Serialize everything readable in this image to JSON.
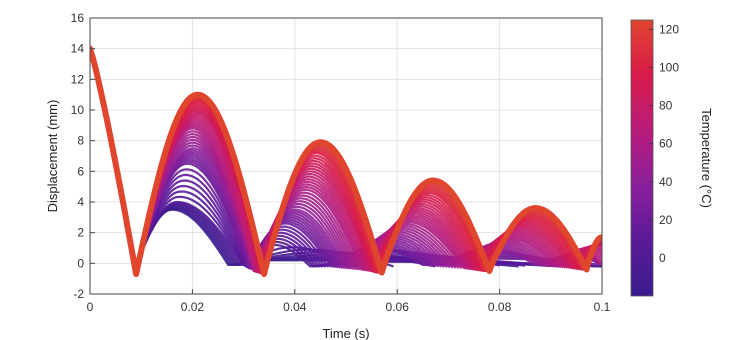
{
  "chart_data": {
    "type": "line",
    "title": "",
    "xlabel": "Time (s)",
    "ylabel": "Displacement (mm)",
    "xlim": [
      0,
      0.1
    ],
    "ylim": [
      -2,
      16
    ],
    "xticks": [
      0,
      0.02,
      0.04,
      0.06,
      0.08,
      0.1
    ],
    "xtick_labels": [
      "0",
      "0.02",
      "0.04",
      "0.06",
      "0.08",
      "0.1"
    ],
    "yticks": [
      -2,
      0,
      2,
      4,
      6,
      8,
      10,
      12,
      14,
      16
    ],
    "ytick_labels": [
      "-2",
      "0",
      "2",
      "4",
      "6",
      "8",
      "10",
      "12",
      "14",
      "16"
    ],
    "grid": true,
    "colorbar": {
      "label": "Temperature (°C)",
      "range": [
        -20,
        125
      ],
      "ticks": [
        0,
        20,
        40,
        60,
        80,
        100,
        120
      ],
      "tick_labels": [
        "0",
        "20",
        "40",
        "60",
        "80",
        "100",
        "120"
      ],
      "colormap": [
        "#3a1c8e",
        "#5a1a9a",
        "#8a1f9a",
        "#b81c7c",
        "#d81b4a",
        "#e0452e"
      ]
    },
    "initial_drop": {
      "x0": 0,
      "y0": 14,
      "x1": 0.009,
      "y1": -0.7
    },
    "series": [
      {
        "temperature": -20,
        "bounces": [
          {
            "x_start": 0.009,
            "x_peak": 0.016,
            "x_end": 0.027,
            "peak": 3.5,
            "min": -0.1
          },
          {
            "x_start": 0.027,
            "x_peak": 0.035,
            "x_end": 0.1,
            "peak": 0.2,
            "min": -0.2
          }
        ]
      },
      {
        "temperature": 0,
        "bounces": [
          {
            "x_start": 0.009,
            "x_peak": 0.017,
            "x_end": 0.03,
            "peak": 4.0,
            "min": -0.1
          },
          {
            "x_start": 0.03,
            "x_peak": 0.036,
            "x_end": 0.043,
            "peak": 1.2,
            "min": -0.2
          },
          {
            "x_start": 0.043,
            "x_peak": 0.06,
            "x_end": 0.1,
            "peak": 0.1,
            "min": -0.2
          }
        ]
      },
      {
        "temperature": 20,
        "bounces": [
          {
            "x_start": 0.009,
            "x_peak": 0.019,
            "x_end": 0.031,
            "peak": 6.5,
            "min": -0.3
          },
          {
            "x_start": 0.031,
            "x_peak": 0.038,
            "x_end": 0.047,
            "peak": 2.6,
            "min": -0.2
          },
          {
            "x_start": 0.047,
            "x_peak": 0.056,
            "x_end": 0.065,
            "peak": 1.0,
            "min": -0.1
          },
          {
            "x_start": 0.065,
            "x_peak": 0.08,
            "x_end": 0.1,
            "peak": 0.3,
            "min": -0.1
          }
        ]
      },
      {
        "temperature": 40,
        "bounces": [
          {
            "x_start": 0.009,
            "x_peak": 0.02,
            "x_end": 0.032,
            "peak": 7.5,
            "min": -0.4
          },
          {
            "x_start": 0.032,
            "x_peak": 0.04,
            "x_end": 0.05,
            "peak": 3.5,
            "min": -0.3
          },
          {
            "x_start": 0.05,
            "x_peak": 0.059,
            "x_end": 0.069,
            "peak": 1.8,
            "min": -0.2
          },
          {
            "x_start": 0.069,
            "x_peak": 0.078,
            "x_end": 0.087,
            "peak": 1.0,
            "min": -0.1
          },
          {
            "x_start": 0.087,
            "x_peak": 0.094,
            "x_end": 0.1,
            "peak": 0.5,
            "min": -0.1
          }
        ]
      },
      {
        "temperature": 60,
        "bounces": [
          {
            "x_start": 0.009,
            "x_peak": 0.02,
            "x_end": 0.032,
            "peak": 8.8,
            "min": -0.5
          },
          {
            "x_start": 0.032,
            "x_peak": 0.042,
            "x_end": 0.053,
            "peak": 4.8,
            "min": -0.4
          },
          {
            "x_start": 0.053,
            "x_peak": 0.062,
            "x_end": 0.073,
            "peak": 2.7,
            "min": -0.3
          },
          {
            "x_start": 0.073,
            "x_peak": 0.082,
            "x_end": 0.091,
            "peak": 1.6,
            "min": -0.2
          },
          {
            "x_start": 0.091,
            "x_peak": 0.096,
            "x_end": 0.1,
            "peak": 0.9,
            "min": -0.1
          }
        ]
      },
      {
        "temperature": 80,
        "bounces": [
          {
            "x_start": 0.009,
            "x_peak": 0.021,
            "x_end": 0.033,
            "peak": 9.7,
            "min": -0.6
          },
          {
            "x_start": 0.033,
            "x_peak": 0.043,
            "x_end": 0.055,
            "peak": 6.0,
            "min": -0.5
          },
          {
            "x_start": 0.055,
            "x_peak": 0.064,
            "x_end": 0.075,
            "peak": 3.6,
            "min": -0.4
          },
          {
            "x_start": 0.075,
            "x_peak": 0.084,
            "x_end": 0.094,
            "peak": 2.3,
            "min": -0.3
          },
          {
            "x_start": 0.094,
            "x_peak": 0.099,
            "x_end": 0.104,
            "peak": 1.2,
            "min": -0.2
          }
        ]
      },
      {
        "temperature": 100,
        "bounces": [
          {
            "x_start": 0.009,
            "x_peak": 0.021,
            "x_end": 0.034,
            "peak": 10.5,
            "min": -0.7
          },
          {
            "x_start": 0.034,
            "x_peak": 0.044,
            "x_end": 0.056,
            "peak": 7.2,
            "min": -0.6
          },
          {
            "x_start": 0.056,
            "x_peak": 0.066,
            "x_end": 0.077,
            "peak": 4.6,
            "min": -0.5
          },
          {
            "x_start": 0.077,
            "x_peak": 0.086,
            "x_end": 0.096,
            "peak": 3.0,
            "min": -0.4
          },
          {
            "x_start": 0.096,
            "x_peak": 0.1,
            "x_end": 0.104,
            "peak": 1.5,
            "min": -0.3
          }
        ]
      },
      {
        "temperature": 120,
        "bounces": [
          {
            "x_start": 0.009,
            "x_peak": 0.021,
            "x_end": 0.034,
            "peak": 11.0,
            "min": -0.7
          },
          {
            "x_start": 0.034,
            "x_peak": 0.045,
            "x_end": 0.057,
            "peak": 7.9,
            "min": -0.6
          },
          {
            "x_start": 0.057,
            "x_peak": 0.067,
            "x_end": 0.078,
            "peak": 5.4,
            "min": -0.5
          },
          {
            "x_start": 0.078,
            "x_peak": 0.087,
            "x_end": 0.097,
            "peak": 3.6,
            "min": -0.4
          },
          {
            "x_start": 0.097,
            "x_peak": 0.1,
            "x_end": 0.104,
            "peak": 1.7,
            "min": -0.3
          }
        ]
      }
    ]
  }
}
